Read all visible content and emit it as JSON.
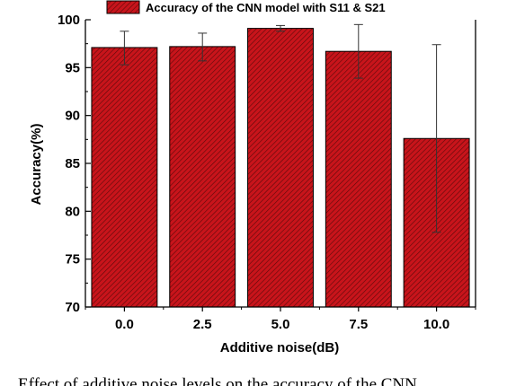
{
  "chart_data": {
    "type": "bar",
    "categories": [
      "0.0",
      "2.5",
      "5.0",
      "7.5",
      "10.0"
    ],
    "series": [
      {
        "name": "Accuracy of the CNN model with S11 & S21",
        "values": [
          97.1,
          97.2,
          99.1,
          96.7,
          87.6
        ],
        "error_low": [
          95.3,
          95.7,
          98.8,
          93.9,
          77.8
        ],
        "error_high": [
          98.8,
          98.6,
          99.4,
          99.5,
          97.4
        ]
      }
    ],
    "xlabel": "Additive noise(dB)",
    "ylabel": "Accuracy(%)",
    "ylim": [
      70,
      100
    ],
    "yticks": [
      70,
      75,
      80,
      85,
      90,
      95,
      100
    ],
    "grid": false,
    "legend_position": "top",
    "colors": {
      "bar_fill": "#c8141b",
      "bar_hatch": "#5a0a0a",
      "axis": "#000000"
    }
  },
  "caption": "Effect of additive noise levels on the accuracy of the CNN"
}
